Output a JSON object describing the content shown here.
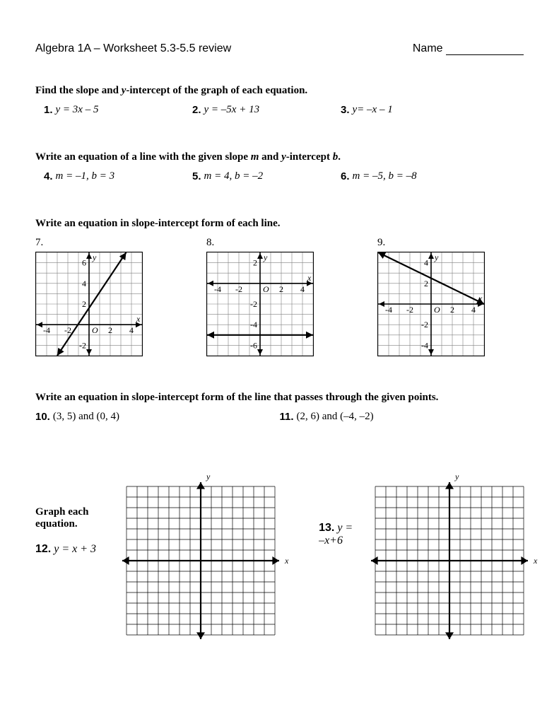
{
  "header": {
    "title": "Algebra 1A – Worksheet 5.3-5.5 review",
    "name_label": "Name"
  },
  "section1": {
    "heading_prefix": "Find the slope and ",
    "heading_ital": "y",
    "heading_suffix": "-intercept of the graph of each equation.",
    "p1_num": "1.",
    "p1_eq": "y = 3x – 5",
    "p2_num": "2.",
    "p2_eq": "y = –5x + 13",
    "p3_num": "3.",
    "p3_eq": "y= –x – 1"
  },
  "section2": {
    "heading_prefix": "Write an equation of a line with the given slope ",
    "heading_m": "m",
    "heading_mid": " and ",
    "heading_y": "y",
    "heading_suffix": "-intercept ",
    "heading_b": "b",
    "heading_end": ".",
    "p4_num": "4.",
    "p4_eq": "m = –1, b = 3",
    "p5_num": "5.",
    "p5_eq": "m = 4, b = –2",
    "p6_num": "6.",
    "p6_eq": "m = –5, b = –8"
  },
  "section3": {
    "heading": "Write an equation in slope-intercept form of each line.",
    "q7": "7.",
    "q8": "8.",
    "q9": "9.",
    "graph7": {
      "xmin": -5,
      "xmax": 5,
      "ymin": -3,
      "ymax": 7,
      "xticks_label": [
        "-4",
        "-2",
        "",
        "2",
        "4"
      ],
      "yticks_label": [
        "-2",
        "",
        "2",
        "4",
        "6"
      ],
      "xlbl": "x",
      "ylbl": "y",
      "line_points": [
        [
          -3,
          -3
        ],
        [
          3.5,
          7
        ]
      ],
      "grid_color": "#808080",
      "axis_color": "#000000",
      "line_color": "#000000",
      "line_width": 2.2
    },
    "graph8": {
      "xmin": -5,
      "xmax": 5,
      "ymin": -7,
      "ymax": 3,
      "xticks_label": [
        "-4",
        "-2",
        "",
        "2",
        "4"
      ],
      "yticks_label": [
        "-6",
        "-4",
        "-2",
        "",
        "2"
      ],
      "xlbl": "x",
      "ylbl": "y",
      "line_points": [
        [
          -5,
          -5
        ],
        [
          5,
          -5
        ]
      ],
      "grid_color": "#808080",
      "axis_color": "#000000",
      "line_color": "#000000",
      "line_width": 2.2
    },
    "graph9": {
      "xmin": -5,
      "xmax": 5,
      "ymin": -5,
      "ymax": 5,
      "xticks_label": [
        "-4",
        "-2",
        "",
        "2",
        "4"
      ],
      "yticks_label": [
        "-4",
        "-2",
        "",
        "2",
        "4"
      ],
      "xlbl": "x",
      "ylbl": "y",
      "line_points": [
        [
          -5,
          5
        ],
        [
          5,
          0
        ]
      ],
      "grid_color": "#808080",
      "axis_color": "#000000",
      "line_color": "#000000",
      "line_width": 2.2
    }
  },
  "section4": {
    "heading": "Write an equation in slope-intercept form of the line that passes through the given points.",
    "p10_num": "10.",
    "p10_eq": "(3, 5) and (0, 4)",
    "p11_num": "11.",
    "p11_eq": "(2, 6) and (–4, –2)"
  },
  "section5": {
    "heading": "Graph each equation.",
    "p12_num": "12.",
    "p12_eq": "y = x + 3",
    "p13_num": "13.",
    "p13_eq": "y = –x+6",
    "blank_grid": {
      "cells": 14,
      "grid_color": "#000000",
      "axis_color": "#000000",
      "xlbl": "x",
      "ylbl": "y"
    }
  }
}
